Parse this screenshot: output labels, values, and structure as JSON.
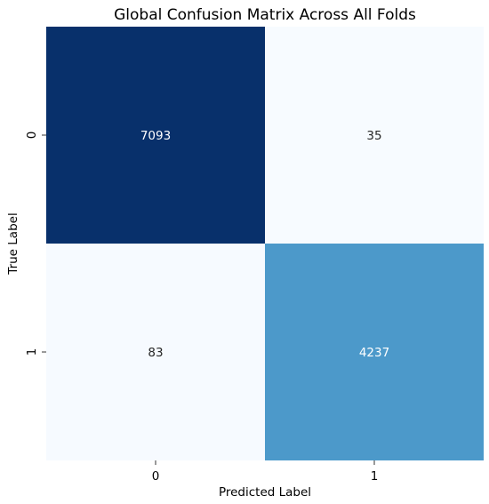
{
  "chart_data": {
    "type": "heatmap",
    "title": "Global Confusion Matrix Across All Folds",
    "xlabel": "Predicted Label",
    "ylabel": "True Label",
    "x_categories": [
      "0",
      "1"
    ],
    "y_categories": [
      "0",
      "1"
    ],
    "values": [
      [
        7093,
        35
      ],
      [
        83,
        4237
      ]
    ],
    "colorbar": false,
    "colormap": "Blues",
    "color_min_hex": "#f7fbff",
    "color_max_hex": "#08306b",
    "annotations": true
  }
}
